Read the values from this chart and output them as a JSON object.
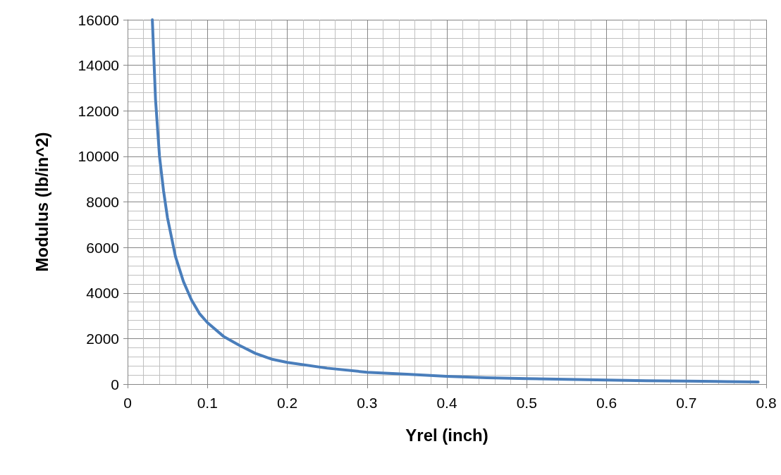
{
  "chart_data": {
    "type": "line",
    "xlabel": "Yrel (inch)",
    "ylabel": "Modulus (lb/in^2)",
    "series": [
      {
        "color": "#4a7ebb",
        "x": [
          0.031,
          0.035,
          0.04,
          0.045,
          0.05,
          0.06,
          0.07,
          0.08,
          0.09,
          0.1,
          0.12,
          0.14,
          0.16,
          0.18,
          0.2,
          0.25,
          0.3,
          0.35,
          0.4,
          0.45,
          0.5,
          0.55,
          0.6,
          0.65,
          0.7,
          0.75,
          0.79
        ],
        "values": [
          16000,
          12500,
          10000,
          8500,
          7300,
          5600,
          4500,
          3700,
          3100,
          2700,
          2100,
          1700,
          1350,
          1100,
          950,
          700,
          520,
          430,
          340,
          280,
          240,
          210,
          180,
          150,
          130,
          110,
          90
        ]
      }
    ],
    "xlim": [
      0,
      0.8
    ],
    "xticks": [
      0,
      0.1,
      0.2,
      0.3,
      0.4,
      0.5,
      0.6,
      0.7,
      0.8
    ],
    "ylim": [
      0,
      16000
    ],
    "yticks": [
      0,
      2000,
      4000,
      6000,
      8000,
      10000,
      12000,
      14000,
      16000
    ],
    "grid": true,
    "marker": "none",
    "line_style": "solid"
  }
}
